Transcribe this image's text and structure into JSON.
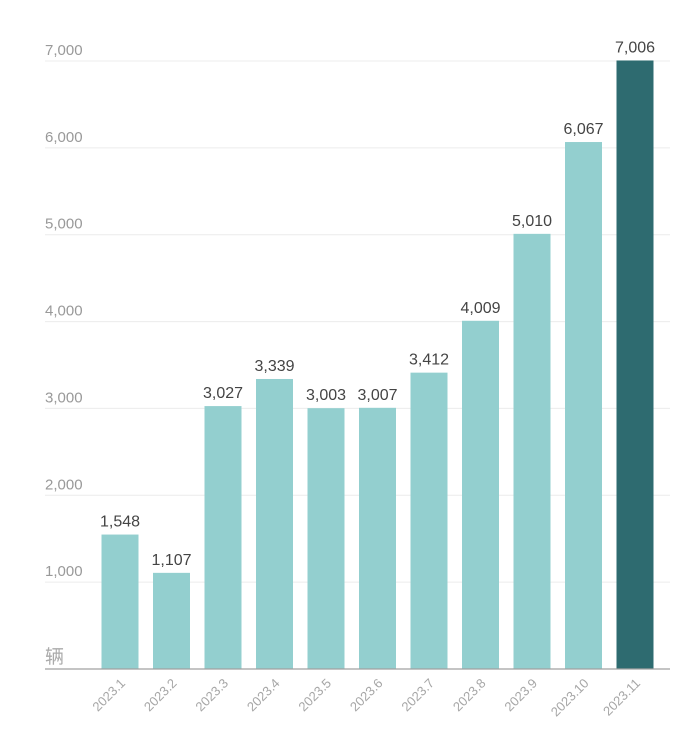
{
  "chart_data": {
    "type": "bar",
    "title": "",
    "xlabel": "",
    "ylabel": "辆",
    "ylim": [
      0,
      7000
    ],
    "yticks": [
      1000,
      2000,
      3000,
      4000,
      5000,
      6000,
      7000
    ],
    "ytick_labels": [
      "1,000",
      "2,000",
      "3,000",
      "4,000",
      "5,000",
      "6,000",
      "7,000"
    ],
    "grid": true,
    "categories": [
      "2023.1",
      "2023.2",
      "2023.3",
      "2023.4",
      "2023.5",
      "2023.6",
      "2023.7",
      "2023.8",
      "2023.9",
      "2023.10",
      "2023.11"
    ],
    "values": [
      1548,
      1107,
      3027,
      3339,
      3003,
      3007,
      3412,
      4009,
      5010,
      6067,
      7006
    ],
    "value_labels": [
      "1,548",
      "1,107",
      "3,027",
      "3,339",
      "3,003",
      "3,007",
      "3,412",
      "4,009",
      "5,010",
      "6,067",
      "7,006"
    ],
    "highlight_index": 10
  },
  "colors": {
    "bar": "#93cfcf",
    "highlight": "#2e6b70",
    "grid": "#ececec",
    "axis": "#a0a0a0"
  }
}
